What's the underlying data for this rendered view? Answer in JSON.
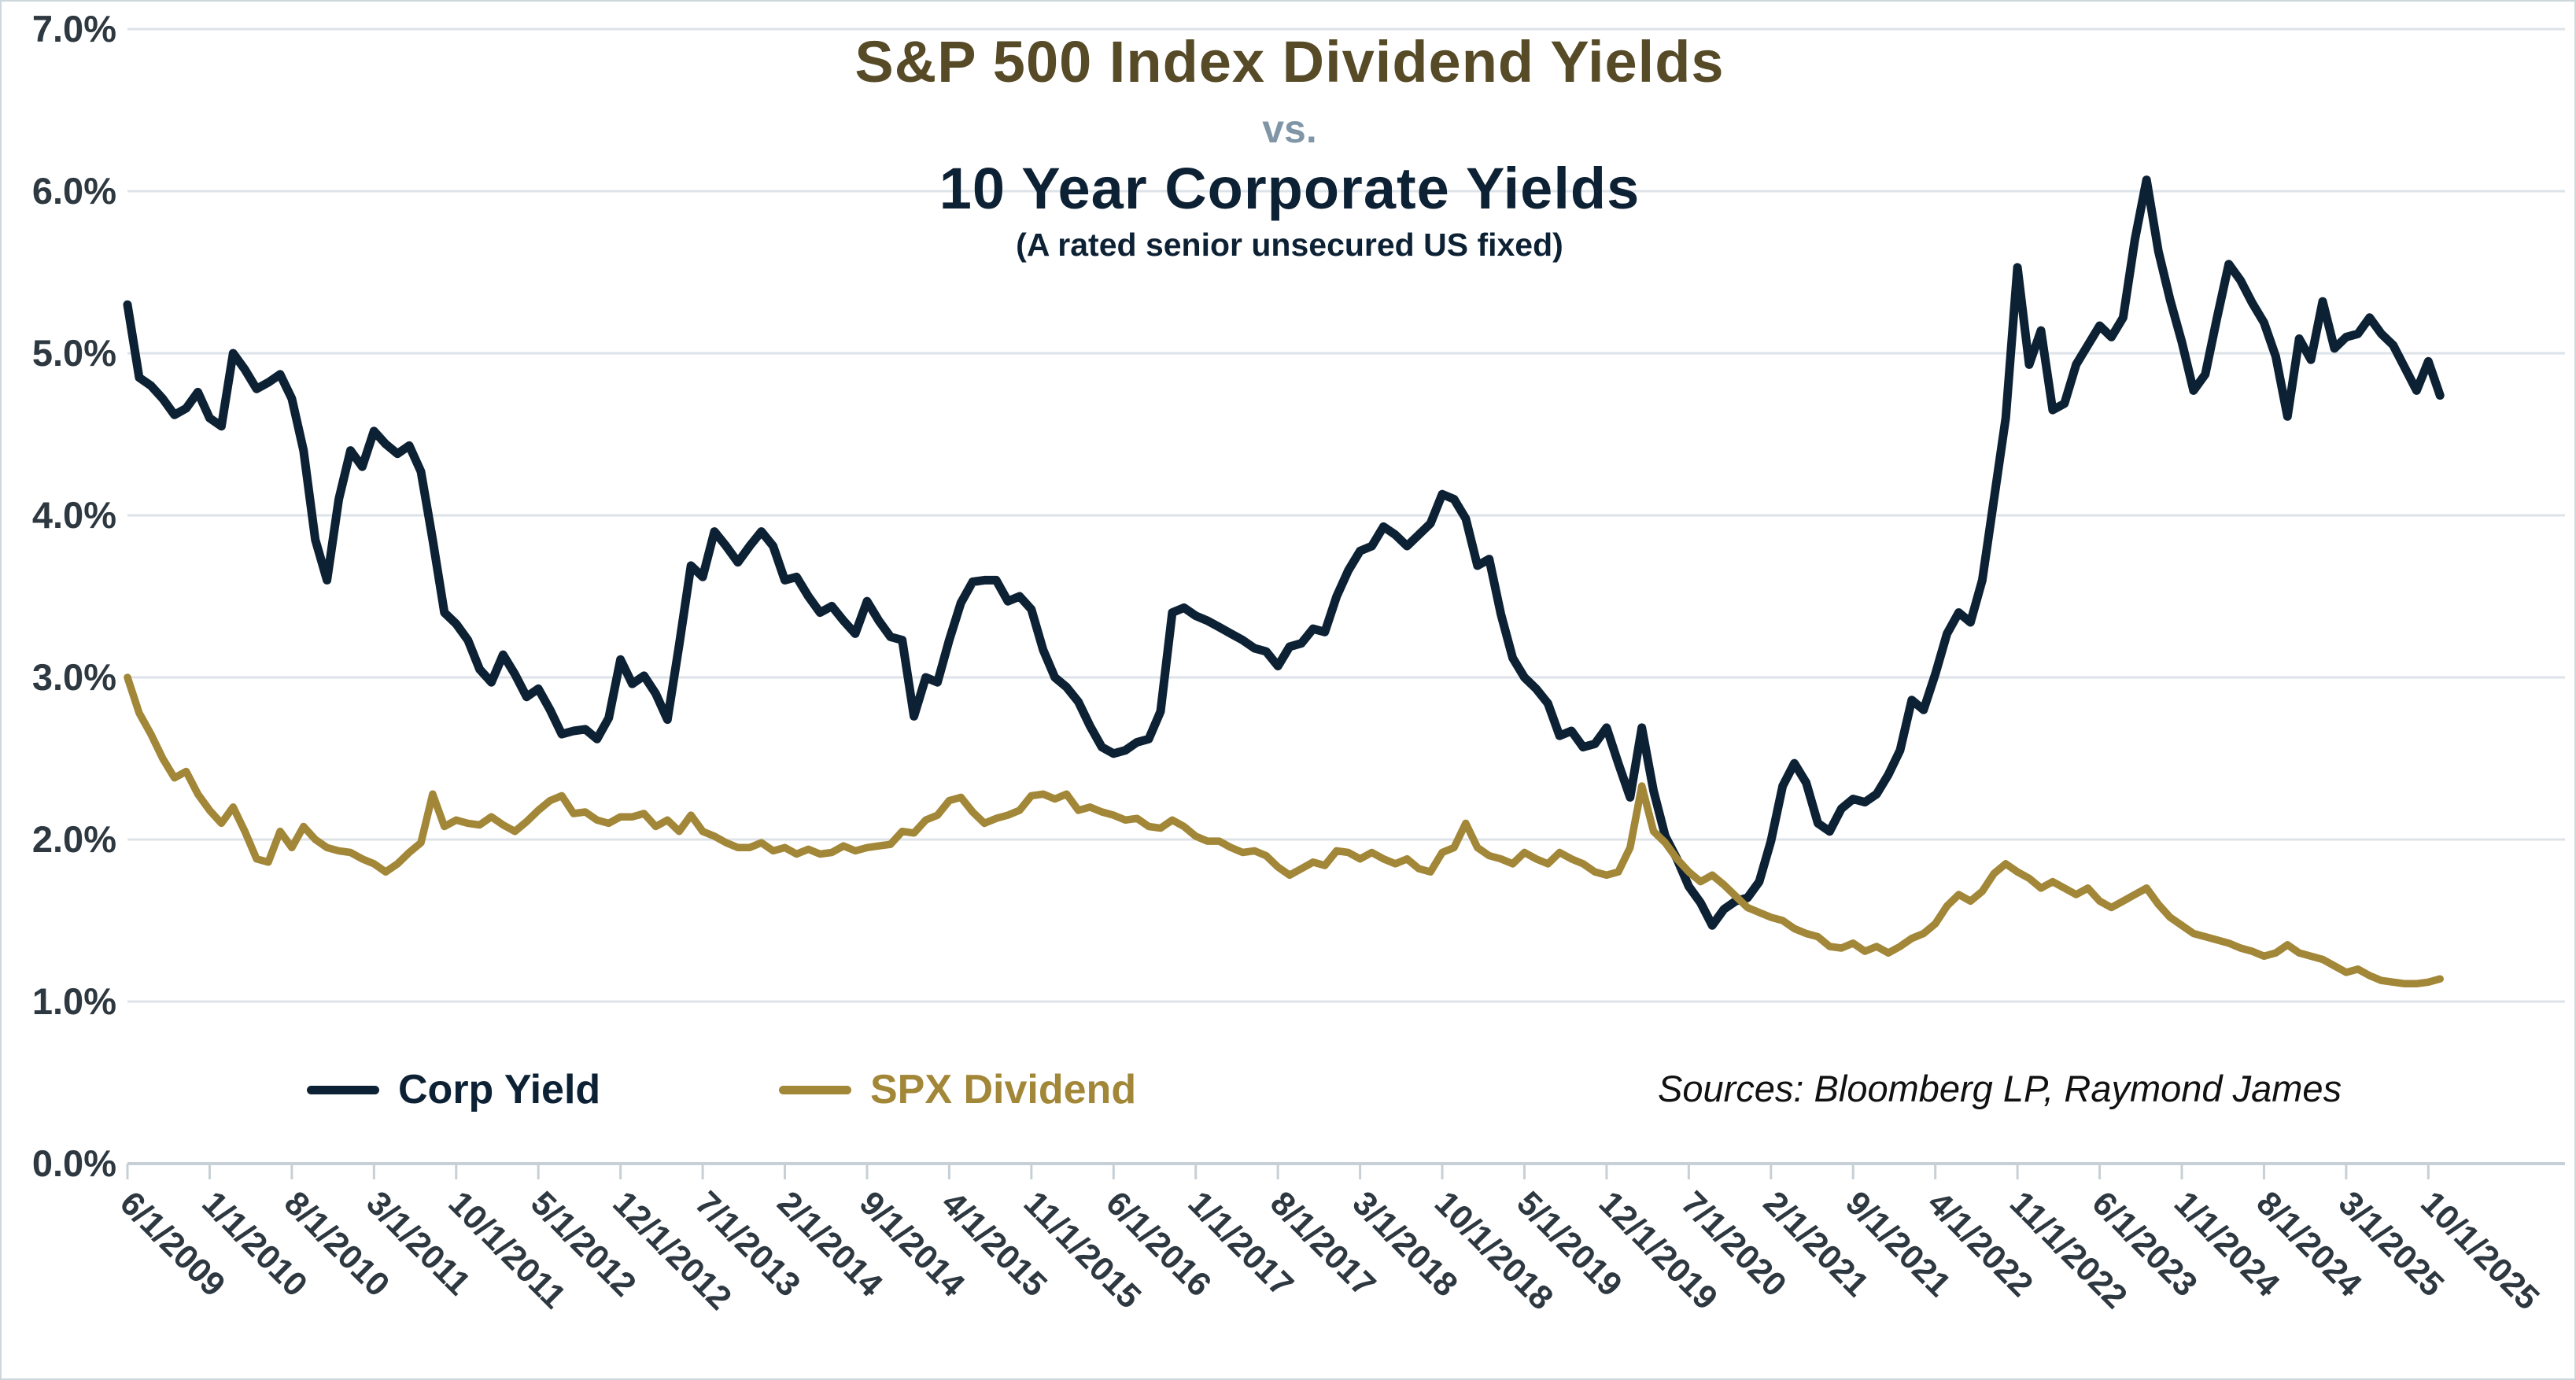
{
  "chart_data": {
    "type": "line",
    "title": "S&P 500 Index Dividend Yields",
    "vs_label": "vs.",
    "subtitle": "10 Year Corporate Yields",
    "subtitle_note": "(A rated senior unsecured US fixed)",
    "source_note": "Sources: Bloomberg LP, Raymond James",
    "frequency": "monthly",
    "start_month": "6/2009",
    "end_month": "11/2025",
    "ylim": [
      0,
      7
    ],
    "grid": "horizontal",
    "legend_position": "bottom-left",
    "y_tick_labels": [
      "0.0%",
      "1.0%",
      "2.0%",
      "3.0%",
      "4.0%",
      "5.0%",
      "6.0%",
      "7.0%"
    ],
    "x_tick_interval_months": 7,
    "x_tick_labels": [
      "6/1/2009",
      "1/1/2010",
      "8/1/2010",
      "3/1/2011",
      "10/1/2011",
      "5/1/2012",
      "12/1/2012",
      "7/1/2013",
      "2/1/2014",
      "9/1/2014",
      "4/1/2015",
      "11/1/2015",
      "6/1/2016",
      "1/1/2017",
      "8/1/2017",
      "3/1/2018",
      "10/1/2018",
      "5/1/2019",
      "12/1/2019",
      "7/1/2020",
      "2/1/2021",
      "9/1/2021",
      "4/1/2022",
      "11/1/2022",
      "6/1/2023",
      "1/1/2024",
      "8/1/2024",
      "3/1/2025",
      "10/1/2025"
    ],
    "colors": {
      "corp_yield": "#0d2134",
      "spx_dividend": "#a28738",
      "title_main": "#564a27",
      "title_vs": "#8096a6",
      "title_sub": "#0d2134",
      "axis_labels": "#2e3840",
      "gridline": "#dde3e8",
      "axis_line": "#c6d0d6"
    },
    "series": [
      {
        "name": "Corp Yield",
        "color": "#0d2134",
        "values": [
          5.3,
          4.85,
          4.8,
          4.72,
          4.62,
          4.66,
          4.76,
          4.6,
          4.55,
          5.0,
          4.9,
          4.78,
          4.82,
          4.87,
          4.72,
          4.4,
          3.85,
          3.6,
          4.1,
          4.4,
          4.3,
          4.52,
          4.44,
          4.38,
          4.43,
          4.27,
          3.85,
          3.4,
          3.33,
          3.23,
          3.05,
          2.97,
          3.14,
          3.02,
          2.88,
          2.93,
          2.8,
          2.65,
          2.67,
          2.68,
          2.62,
          2.75,
          3.11,
          2.96,
          3.01,
          2.9,
          2.74,
          3.2,
          3.69,
          3.62,
          3.9,
          3.81,
          3.71,
          3.81,
          3.9,
          3.81,
          3.6,
          3.62,
          3.5,
          3.4,
          3.44,
          3.35,
          3.27,
          3.47,
          3.35,
          3.25,
          3.23,
          2.76,
          3.0,
          2.97,
          3.23,
          3.46,
          3.59,
          3.6,
          3.6,
          3.47,
          3.5,
          3.42,
          3.17,
          3.0,
          2.94,
          2.85,
          2.7,
          2.57,
          2.53,
          2.55,
          2.6,
          2.62,
          2.79,
          3.4,
          3.43,
          3.38,
          3.35,
          3.31,
          3.27,
          3.23,
          3.18,
          3.16,
          3.07,
          3.19,
          3.21,
          3.3,
          3.28,
          3.5,
          3.66,
          3.78,
          3.81,
          3.93,
          3.88,
          3.81,
          3.88,
          3.95,
          4.13,
          4.1,
          3.98,
          3.69,
          3.73,
          3.39,
          3.12,
          3.0,
          2.93,
          2.84,
          2.64,
          2.67,
          2.57,
          2.59,
          2.69,
          2.47,
          2.26,
          2.69,
          2.3,
          2.02,
          1.88,
          1.71,
          1.61,
          1.47,
          1.57,
          1.62,
          1.64,
          1.74,
          1.99,
          2.33,
          2.47,
          2.35,
          2.1,
          2.05,
          2.19,
          2.25,
          2.23,
          2.28,
          2.4,
          2.55,
          2.86,
          2.8,
          3.02,
          3.27,
          3.4,
          3.34,
          3.6,
          4.1,
          4.6,
          5.53,
          4.93,
          5.14,
          4.65,
          4.69,
          4.93,
          5.05,
          5.17,
          5.1,
          5.22,
          5.7,
          6.07,
          5.63,
          5.33,
          5.07,
          4.77,
          4.87,
          5.22,
          5.55,
          5.45,
          5.31,
          5.19,
          4.98,
          4.61,
          5.09,
          4.96,
          5.32,
          5.03,
          5.1,
          5.12,
          5.22,
          5.12,
          5.05,
          4.91,
          4.77,
          4.95,
          4.74
        ]
      },
      {
        "name": "SPX Dividend",
        "color": "#a28738",
        "values": [
          3.0,
          2.78,
          2.65,
          2.5,
          2.38,
          2.42,
          2.28,
          2.18,
          2.1,
          2.2,
          2.05,
          1.88,
          1.86,
          2.05,
          1.95,
          2.08,
          2.0,
          1.95,
          1.93,
          1.92,
          1.88,
          1.85,
          1.8,
          1.85,
          1.92,
          1.98,
          2.28,
          2.08,
          2.12,
          2.1,
          2.09,
          2.14,
          2.09,
          2.05,
          2.11,
          2.18,
          2.24,
          2.27,
          2.16,
          2.17,
          2.12,
          2.1,
          2.14,
          2.14,
          2.16,
          2.08,
          2.12,
          2.05,
          2.15,
          2.05,
          2.02,
          1.98,
          1.95,
          1.95,
          1.98,
          1.93,
          1.95,
          1.91,
          1.94,
          1.91,
          1.92,
          1.96,
          1.93,
          1.95,
          1.96,
          1.97,
          2.05,
          2.04,
          2.12,
          2.15,
          2.24,
          2.26,
          2.17,
          2.1,
          2.13,
          2.15,
          2.18,
          2.27,
          2.28,
          2.25,
          2.28,
          2.18,
          2.2,
          2.17,
          2.15,
          2.12,
          2.13,
          2.08,
          2.07,
          2.12,
          2.08,
          2.02,
          1.99,
          1.99,
          1.95,
          1.92,
          1.93,
          1.9,
          1.83,
          1.78,
          1.82,
          1.86,
          1.84,
          1.93,
          1.92,
          1.88,
          1.92,
          1.88,
          1.85,
          1.88,
          1.82,
          1.8,
          1.92,
          1.95,
          2.1,
          1.95,
          1.9,
          1.88,
          1.85,
          1.92,
          1.88,
          1.85,
          1.92,
          1.88,
          1.85,
          1.8,
          1.78,
          1.8,
          1.95,
          2.33,
          2.05,
          1.98,
          1.88,
          1.8,
          1.74,
          1.78,
          1.72,
          1.65,
          1.58,
          1.55,
          1.52,
          1.5,
          1.45,
          1.42,
          1.4,
          1.34,
          1.33,
          1.36,
          1.31,
          1.34,
          1.3,
          1.34,
          1.39,
          1.42,
          1.48,
          1.59,
          1.66,
          1.62,
          1.68,
          1.79,
          1.85,
          1.8,
          1.76,
          1.7,
          1.74,
          1.7,
          1.66,
          1.7,
          1.62,
          1.58,
          1.62,
          1.66,
          1.7,
          1.6,
          1.52,
          1.47,
          1.42,
          1.4,
          1.38,
          1.36,
          1.33,
          1.31,
          1.28,
          1.3,
          1.35,
          1.3,
          1.28,
          1.26,
          1.22,
          1.18,
          1.2,
          1.16,
          1.13,
          1.12,
          1.11,
          1.11,
          1.12,
          1.14
        ]
      }
    ]
  },
  "legend": {
    "corp_label": "Corp Yield",
    "spx_label": "SPX Dividend"
  }
}
